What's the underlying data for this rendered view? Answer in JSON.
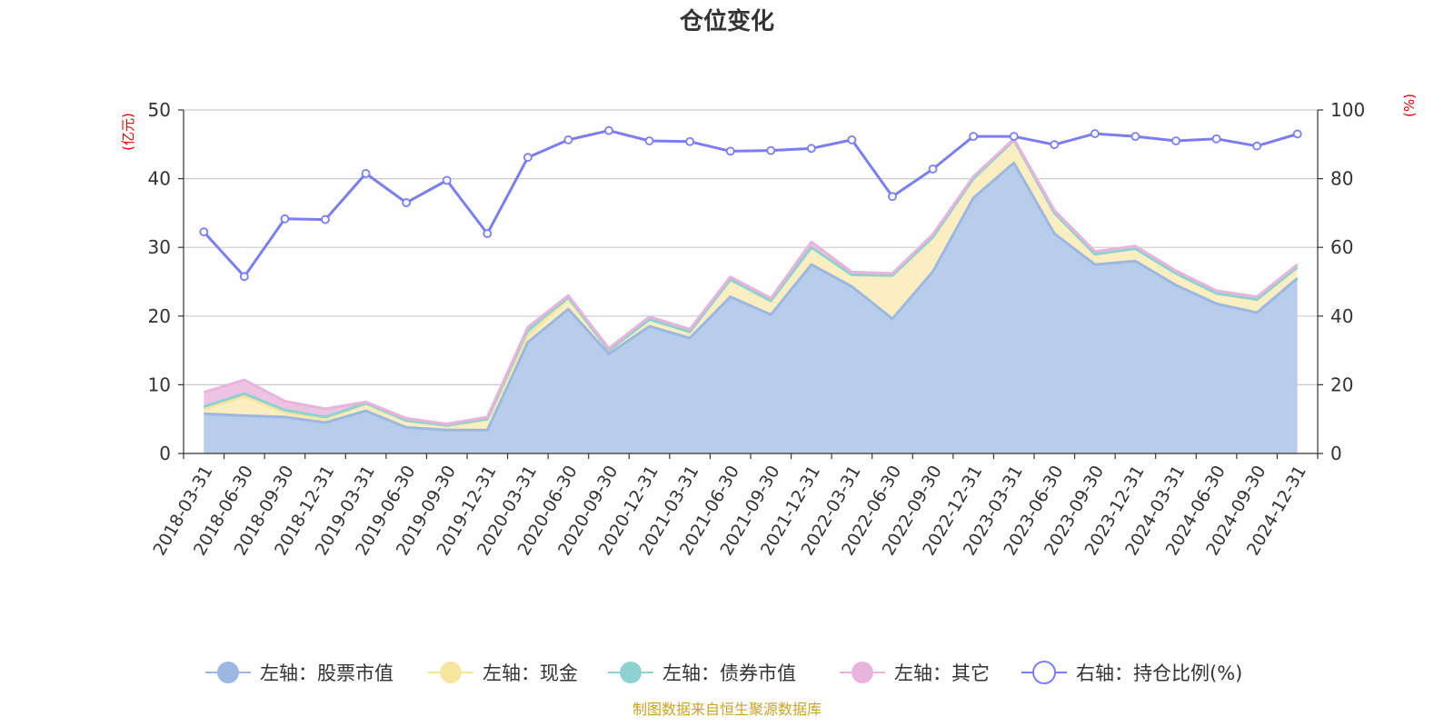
{
  "chart_data": {
    "type": "area",
    "title": "仓位变化",
    "y_left_unit": "(亿元)",
    "y_right_unit": "(%)",
    "y_left_range": [
      0,
      50
    ],
    "y_left_ticks": [
      0,
      10,
      20,
      30,
      40,
      50
    ],
    "y_right_range": [
      0,
      100
    ],
    "y_right_ticks": [
      0,
      20,
      40,
      60,
      80,
      100
    ],
    "grid": true,
    "legend_position": "bottom",
    "categories": [
      "2018-03-31",
      "2018-06-30",
      "2018-09-30",
      "2018-12-31",
      "2019-03-31",
      "2019-06-30",
      "2019-09-30",
      "2019-12-31",
      "2020-03-31",
      "2020-06-30",
      "2020-09-30",
      "2020-12-31",
      "2021-03-31",
      "2021-06-30",
      "2021-09-30",
      "2021-12-31",
      "2022-03-31",
      "2022-06-30",
      "2022-09-30",
      "2022-12-31",
      "2023-03-31",
      "2023-06-30",
      "2023-09-30",
      "2023-12-31",
      "2024-03-31",
      "2024-06-30",
      "2024-09-30",
      "2024-12-31"
    ],
    "stacked_series": [
      {
        "name": "左轴：股票市值",
        "color": "#9db8e0",
        "fill": "#b8cceb",
        "values": [
          5.8,
          5.5,
          5.3,
          4.5,
          6.2,
          3.8,
          3.4,
          3.4,
          16.2,
          21.0,
          14.5,
          18.5,
          16.8,
          22.8,
          20.2,
          27.5,
          24.3,
          19.6,
          26.5,
          37.2,
          42.3,
          32.0,
          27.5,
          28.0,
          24.5,
          21.8,
          20.5,
          25.5
        ]
      },
      {
        "name": "左轴：现金",
        "color": "#f7e6a0",
        "fill": "#fbefc2",
        "values": [
          0.6,
          2.8,
          0.6,
          0.5,
          1.0,
          0.9,
          0.6,
          1.5,
          1.0,
          1.5,
          0.5,
          1.0,
          0.9,
          2.5,
          2.0,
          2.5,
          1.7,
          6.3,
          5.0,
          2.8,
          3.3,
          3.0,
          1.5,
          1.8,
          1.7,
          1.5,
          1.9,
          1.6
        ]
      },
      {
        "name": "左轴：债券市值",
        "color": "#8fd1d1",
        "fill": "#a8dcdc",
        "values": [
          0.4,
          0.4,
          0.4,
          0.3,
          0.1,
          0.1,
          0.1,
          0.1,
          0.8,
          0.2,
          0.0,
          0.0,
          0.0,
          0.0,
          0.0,
          0.0,
          0.0,
          0.0,
          0.0,
          0.0,
          0.0,
          0.0,
          0.0,
          0.0,
          0.0,
          0.0,
          0.0,
          0.0
        ]
      },
      {
        "name": "左轴：其它",
        "color": "#e8b4dc",
        "fill": "#edc3e3",
        "values": [
          2.1,
          2.0,
          1.3,
          1.2,
          0.2,
          0.3,
          0.2,
          0.3,
          0.4,
          0.3,
          0.3,
          0.4,
          0.4,
          0.4,
          0.4,
          0.8,
          0.4,
          0.3,
          0.4,
          0.3,
          0.2,
          0.4,
          0.4,
          0.4,
          0.4,
          0.4,
          0.4,
          0.4
        ]
      }
    ],
    "line_series": {
      "name": "右轴：持仓比例(%)",
      "color": "#7b7ef0",
      "values": [
        64.5,
        51.5,
        68.3,
        68.1,
        81.5,
        73.0,
        79.5,
        64.0,
        86.2,
        91.3,
        94.0,
        91.0,
        90.8,
        88.0,
        88.2,
        88.8,
        91.3,
        74.8,
        82.8,
        92.3,
        92.3,
        89.9,
        93.1,
        92.3,
        91.0,
        91.6,
        89.5,
        93.0
      ]
    }
  },
  "source_note": "制图数据来自恒生聚源数据库",
  "colors": {
    "axis": "#333333",
    "grid": "#cccccc",
    "unit": "#e00000",
    "source": "#c9a227"
  }
}
